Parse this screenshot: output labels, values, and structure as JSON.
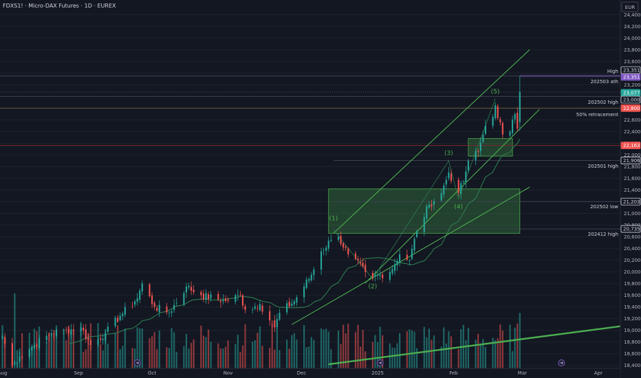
{
  "header": {
    "title": "FDXS1! · Micro-DAX Futures · 1D · EUREX"
  },
  "currency_button": "EUR",
  "colors": {
    "background": "#131722",
    "up": "#26a69a",
    "down": "#ef5350",
    "channel": "#4caf50",
    "zone_fill": "rgba(76,175,80,0.28)",
    "ath": "#7e57c2",
    "ma": "#2e7d4f"
  },
  "chart_data": {
    "type": "candlestick",
    "title": "FDXS1! · Micro-DAX Futures · 1D · EUREX",
    "ylim": [
      18350,
      24650
    ],
    "y_ticks": [
      "24,400",
      "24,200",
      "24,000",
      "23,800",
      "23,600",
      "23,400",
      "23,200",
      "23,000",
      "22,800",
      "22,600",
      "22,400",
      "22,200",
      "22,000",
      "21,800",
      "21,600",
      "21,400",
      "21,200",
      "21,000",
      "20,800",
      "20,600",
      "20,400",
      "20,200",
      "20,000",
      "19,800",
      "19,600",
      "19,400",
      "19,200",
      "19,000",
      "18,800",
      "18,600",
      "18,400"
    ],
    "x_ticks": [
      {
        "label": "Aug",
        "date": "2024-08-01"
      },
      {
        "label": "Sep",
        "date": "2024-09-01"
      },
      {
        "label": "Oct",
        "date": "2024-10-01"
      },
      {
        "label": "Nov",
        "date": "2024-11-01"
      },
      {
        "label": "Dec",
        "date": "2024-12-01"
      },
      {
        "label": "2025",
        "date": "2025-01-01"
      },
      {
        "label": "Feb",
        "date": "2025-02-01"
      },
      {
        "label": "Mar",
        "date": "2025-03-01"
      },
      {
        "label": "Apr",
        "date": "2025-04-01"
      }
    ],
    "x_range": [
      "2024-07-31",
      "2025-04-10"
    ],
    "anchors": [
      [
        "2024-08-01",
        18900
      ],
      [
        "2024-08-05",
        18400
      ],
      [
        "2024-08-08",
        18550
      ],
      [
        "2024-08-14",
        18750
      ],
      [
        "2024-08-21",
        18950
      ],
      [
        "2024-08-27",
        19000
      ],
      [
        "2024-09-02",
        19050
      ],
      [
        "2024-09-06",
        18750
      ],
      [
        "2024-09-12",
        18950
      ],
      [
        "2024-09-18",
        19250
      ],
      [
        "2024-09-25",
        19550
      ],
      [
        "2024-09-27",
        19800
      ],
      [
        "2024-10-02",
        19400
      ],
      [
        "2024-10-08",
        19300
      ],
      [
        "2024-10-15",
        19750
      ],
      [
        "2024-10-21",
        19600
      ],
      [
        "2024-10-31",
        19500
      ],
      [
        "2024-11-06",
        19600
      ],
      [
        "2024-11-08",
        19350
      ],
      [
        "2024-11-14",
        19450
      ],
      [
        "2024-11-20",
        19050
      ],
      [
        "2024-11-22",
        19300
      ],
      [
        "2024-11-28",
        19500
      ],
      [
        "2024-12-05",
        19950
      ],
      [
        "2024-12-09",
        20350
      ],
      [
        "2024-12-13",
        20550
      ],
      [
        "2024-12-16",
        20600
      ],
      [
        "2024-12-20",
        20300
      ],
      [
        "2024-12-27",
        20000
      ],
      [
        "2024-12-30",
        19900
      ],
      [
        "2025-01-06",
        20000
      ],
      [
        "2025-01-10",
        20300
      ],
      [
        "2025-01-14",
        20200
      ],
      [
        "2025-01-17",
        20700
      ],
      [
        "2025-01-22",
        21150
      ],
      [
        "2025-01-27",
        21350
      ],
      [
        "2025-01-30",
        21700
      ],
      [
        "2025-02-03",
        21350
      ],
      [
        "2025-02-05",
        21550
      ],
      [
        "2025-02-07",
        21900
      ],
      [
        "2025-02-11",
        22050
      ],
      [
        "2025-02-14",
        22500
      ],
      [
        "2025-02-17",
        22650
      ],
      [
        "2025-02-18",
        22850
      ],
      [
        "2025-02-21",
        22350
      ],
      [
        "2025-02-24",
        22400
      ],
      [
        "2025-02-26",
        22700
      ],
      [
        "2025-02-27",
        22450
      ],
      [
        "2025-02-28",
        23050
      ]
    ],
    "price_lines": [
      {
        "label": "High",
        "price": 23351,
        "badge": "23,351",
        "style": "ath"
      },
      {
        "label": "202503 ath",
        "price": 23351,
        "badge": "",
        "style": "level"
      },
      {
        "label": "",
        "price": 23077,
        "badge": "23,077",
        "style": "current"
      },
      {
        "label": "202502 high",
        "price": 23000,
        "badge": "23,000",
        "style": "level"
      },
      {
        "label": "50% retracement",
        "price": 22800,
        "badge": "22,800",
        "style": "retracement"
      },
      {
        "label": "",
        "price": 22163,
        "badge": "22,163",
        "style": "red"
      },
      {
        "label": "202501 high",
        "price": 21906,
        "badge": "21,906",
        "style": "level"
      },
      {
        "label": "202502 low",
        "price": 21203,
        "badge": "21,203",
        "style": "level"
      },
      {
        "label": "202412 high",
        "price": 20735,
        "badge": "20,735",
        "style": "level"
      }
    ],
    "zones": [
      {
        "start": "2024-12-12",
        "end": "2025-02-28",
        "low": 20660,
        "high": 21420
      },
      {
        "start": "2025-02-07",
        "end": "2025-02-25",
        "low": 21980,
        "high": 22280
      }
    ],
    "wave_labels": [
      {
        "text": "(1)",
        "date": "2024-12-14",
        "price": 20880
      },
      {
        "text": "(2)",
        "date": "2024-12-30",
        "price": 19720
      },
      {
        "text": "(3)",
        "date": "2025-01-30",
        "price": 22000
      },
      {
        "text": "(4)",
        "date": "2025-02-03",
        "price": 21080
      },
      {
        "text": "(5)",
        "date": "2025-02-18",
        "price": 23050
      }
    ]
  }
}
